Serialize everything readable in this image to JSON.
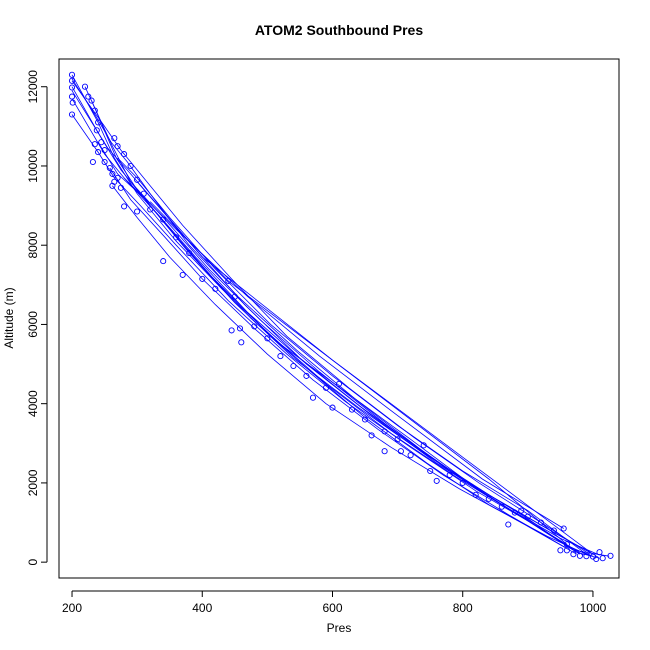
{
  "chart_data": {
    "type": "scatter",
    "title": "ATOM2 Southbound Pres",
    "xlabel": "Pres",
    "ylabel": "Altitude (m)",
    "xlim": [
      180,
      1040
    ],
    "ylim": [
      -400,
      12700
    ],
    "xticks": [
      200,
      400,
      600,
      800,
      1000
    ],
    "yticks": [
      0,
      2000,
      4000,
      6000,
      8000,
      10000,
      12000
    ],
    "grid": false,
    "legend": "none",
    "colors": {
      "series": "#0000ff",
      "axes": "#000000",
      "background": "#ffffff"
    },
    "series": [
      {
        "points": [
          [
            200,
            12300
          ],
          [
            200,
            12150
          ],
          [
            200,
            11980
          ],
          [
            200,
            11750
          ],
          [
            201,
            11600
          ],
          [
            200,
            11300
          ],
          [
            220,
            12000
          ],
          [
            225,
            11750
          ],
          [
            230,
            11650
          ],
          [
            235,
            11400
          ],
          [
            240,
            11100
          ],
          [
            238,
            10900
          ],
          [
            245,
            10600
          ],
          [
            250,
            10400
          ],
          [
            235,
            10550
          ],
          [
            240,
            10350
          ],
          [
            232,
            10100
          ],
          [
            250,
            10100
          ],
          [
            258,
            9950
          ],
          [
            262,
            9800
          ],
          [
            265,
            9600
          ],
          [
            262,
            9500
          ],
          [
            270,
            9700
          ],
          [
            275,
            9450
          ],
          [
            265,
            10700
          ],
          [
            270,
            10500
          ],
          [
            280,
            10300
          ],
          [
            290,
            10000
          ],
          [
            300,
            9650
          ],
          [
            310,
            9300
          ],
          [
            280,
            8980
          ],
          [
            300,
            8850
          ],
          [
            320,
            8900
          ],
          [
            340,
            8650
          ],
          [
            360,
            8200
          ],
          [
            380,
            7800
          ],
          [
            340,
            7600
          ],
          [
            370,
            7250
          ],
          [
            400,
            7150
          ],
          [
            420,
            6900
          ],
          [
            440,
            7100
          ],
          [
            450,
            6700
          ],
          [
            445,
            5850
          ],
          [
            458,
            5900
          ],
          [
            460,
            5550
          ],
          [
            480,
            5950
          ],
          [
            500,
            5650
          ],
          [
            520,
            5200
          ],
          [
            540,
            4950
          ],
          [
            560,
            4700
          ],
          [
            570,
            4150
          ],
          [
            590,
            4400
          ],
          [
            610,
            4500
          ],
          [
            600,
            3900
          ],
          [
            630,
            3850
          ],
          [
            650,
            3600
          ],
          [
            660,
            3200
          ],
          [
            680,
            3300
          ],
          [
            700,
            3100
          ],
          [
            705,
            2800
          ],
          [
            680,
            2800
          ],
          [
            720,
            2700
          ],
          [
            740,
            2950
          ],
          [
            750,
            2300
          ],
          [
            760,
            2050
          ],
          [
            780,
            2200
          ],
          [
            800,
            2000
          ],
          [
            820,
            1700
          ],
          [
            840,
            1600
          ],
          [
            860,
            1400
          ],
          [
            880,
            1250
          ],
          [
            900,
            1150
          ],
          [
            920,
            1000
          ],
          [
            940,
            800
          ],
          [
            870,
            950
          ],
          [
            890,
            1300
          ],
          [
            955,
            850
          ],
          [
            950,
            300
          ],
          [
            960,
            450
          ],
          [
            970,
            200
          ],
          [
            980,
            160
          ],
          [
            990,
            150
          ],
          [
            1000,
            140
          ],
          [
            1005,
            80
          ],
          [
            1010,
            250
          ],
          [
            1015,
            100
          ],
          [
            1027,
            160
          ],
          [
            960,
            300
          ]
        ],
        "paths": [
          [
            [
              200,
              12300
            ],
            [
              240,
              11100
            ],
            [
              265,
              10200
            ],
            [
              300,
              9300
            ],
            [
              360,
              8100
            ],
            [
              430,
              6900
            ],
            [
              520,
              5500
            ],
            [
              620,
              4300
            ],
            [
              720,
              3100
            ],
            [
              810,
              2000
            ],
            [
              900,
              1100
            ],
            [
              960,
              400
            ],
            [
              1000,
              150
            ]
          ],
          [
            [
              200,
              12000
            ],
            [
              245,
              10700
            ],
            [
              275,
              9900
            ],
            [
              320,
              9000
            ],
            [
              390,
              7700
            ],
            [
              470,
              6300
            ],
            [
              560,
              5000
            ],
            [
              660,
              3700
            ],
            [
              760,
              2500
            ],
            [
              860,
              1450
            ],
            [
              950,
              600
            ],
            [
              1010,
              180
            ]
          ],
          [
            [
              220,
              12000
            ],
            [
              262,
              10500
            ],
            [
              290,
              9600
            ],
            [
              340,
              8700
            ],
            [
              410,
              7400
            ],
            [
              490,
              6100
            ],
            [
              580,
              4800
            ],
            [
              680,
              3500
            ],
            [
              780,
              2300
            ],
            [
              880,
              1250
            ],
            [
              970,
              300
            ],
            [
              1025,
              150
            ]
          ],
          [
            [
              200,
              11700
            ],
            [
              250,
              10300
            ],
            [
              280,
              9700
            ],
            [
              330,
              8800
            ],
            [
              400,
              7450
            ],
            [
              475,
              6150
            ],
            [
              560,
              4900
            ],
            [
              650,
              3650
            ],
            [
              745,
              2500
            ],
            [
              840,
              1450
            ],
            [
              930,
              650
            ],
            [
              995,
              160
            ]
          ],
          [
            [
              230,
              11650
            ],
            [
              268,
              10200
            ],
            [
              300,
              9400
            ],
            [
              345,
              8500
            ],
            [
              415,
              7200
            ],
            [
              500,
              5800
            ],
            [
              590,
              4500
            ],
            [
              690,
              3250
            ],
            [
              790,
              2150
            ],
            [
              890,
              1150
            ],
            [
              975,
              250
            ],
            [
              1010,
              100
            ]
          ],
          [
            [
              200,
              11300
            ],
            [
              240,
              10350
            ],
            [
              265,
              9700
            ],
            [
              305,
              9000
            ],
            [
              360,
              8000
            ],
            [
              440,
              6600
            ],
            [
              530,
              5250
            ],
            [
              620,
              4050
            ],
            [
              720,
              2900
            ],
            [
              820,
              1800
            ],
            [
              915,
              900
            ],
            [
              985,
              180
            ]
          ],
          [
            [
              240,
              10600
            ],
            [
              270,
              9800
            ],
            [
              310,
              9200
            ],
            [
              375,
              7900
            ],
            [
              450,
              6550
            ],
            [
              540,
              5150
            ],
            [
              640,
              3900
            ],
            [
              740,
              2750
            ],
            [
              840,
              1700
            ],
            [
              940,
              750
            ],
            [
              1000,
              200
            ]
          ],
          [
            [
              200,
              12200
            ],
            [
              235,
              11300
            ],
            [
              260,
              10600
            ],
            [
              285,
              10100
            ],
            [
              320,
              9300
            ],
            [
              380,
              8000
            ],
            [
              455,
              6700
            ],
            [
              545,
              5350
            ],
            [
              640,
              4050
            ],
            [
              735,
              2850
            ],
            [
              830,
              1750
            ],
            [
              920,
              850
            ],
            [
              980,
              200
            ]
          ],
          [
            [
              258,
              9950
            ],
            [
              290,
              9150
            ],
            [
              340,
              8250
            ],
            [
              400,
              7150
            ],
            [
              480,
              5900
            ],
            [
              570,
              4600
            ],
            [
              670,
              3350
            ],
            [
              770,
              2200
            ],
            [
              870,
              1200
            ],
            [
              960,
              350
            ]
          ],
          [
            [
              270,
              10200
            ],
            [
              300,
              9700
            ],
            [
              350,
              8700
            ],
            [
              420,
              7400
            ],
            [
              505,
              6000
            ],
            [
              600,
              4700
            ],
            [
              700,
              3450
            ],
            [
              800,
              2300
            ],
            [
              900,
              1300
            ],
            [
              990,
              200
            ]
          ],
          [
            [
              200,
              11900
            ],
            [
              255,
              10450
            ],
            [
              290,
              9800
            ],
            [
              335,
              8950
            ],
            [
              395,
              7800
            ],
            [
              465,
              6500
            ],
            [
              550,
              5150
            ],
            [
              645,
              3900
            ],
            [
              750,
              2650
            ],
            [
              850,
              1600
            ],
            [
              945,
              700
            ],
            [
              1005,
              160
            ]
          ],
          [
            [
              262,
              9500
            ],
            [
              300,
              8700
            ],
            [
              350,
              7700
            ],
            [
              420,
              6500
            ],
            [
              500,
              5250
            ],
            [
              590,
              4000
            ],
            [
              690,
              2900
            ],
            [
              795,
              1850
            ],
            [
              895,
              950
            ],
            [
              975,
              200
            ]
          ],
          [
            [
              300,
              9600
            ],
            [
              400,
              7700
            ],
            [
              600,
              5100
            ],
            [
              800,
              2650
            ],
            [
              1000,
              200
            ]
          ],
          [
            [
              320,
              9100
            ],
            [
              440,
              7100
            ],
            [
              640,
              4600
            ],
            [
              840,
              2100
            ],
            [
              960,
              450
            ]
          ],
          [
            [
              280,
              9700
            ],
            [
              360,
              8400
            ],
            [
              470,
              6700
            ],
            [
              580,
              5200
            ],
            [
              700,
              3700
            ],
            [
              830,
              2100
            ],
            [
              955,
              850
            ]
          ],
          [
            [
              200,
              12150
            ],
            [
              250,
              11000
            ],
            [
              275,
              10400
            ],
            [
              310,
              9700
            ],
            [
              370,
              8500
            ],
            [
              445,
              7150
            ],
            [
              530,
              5700
            ],
            [
              625,
              4400
            ],
            [
              725,
              3150
            ],
            [
              825,
              2000
            ],
            [
              925,
              950
            ],
            [
              995,
              200
            ]
          ]
        ]
      }
    ]
  }
}
